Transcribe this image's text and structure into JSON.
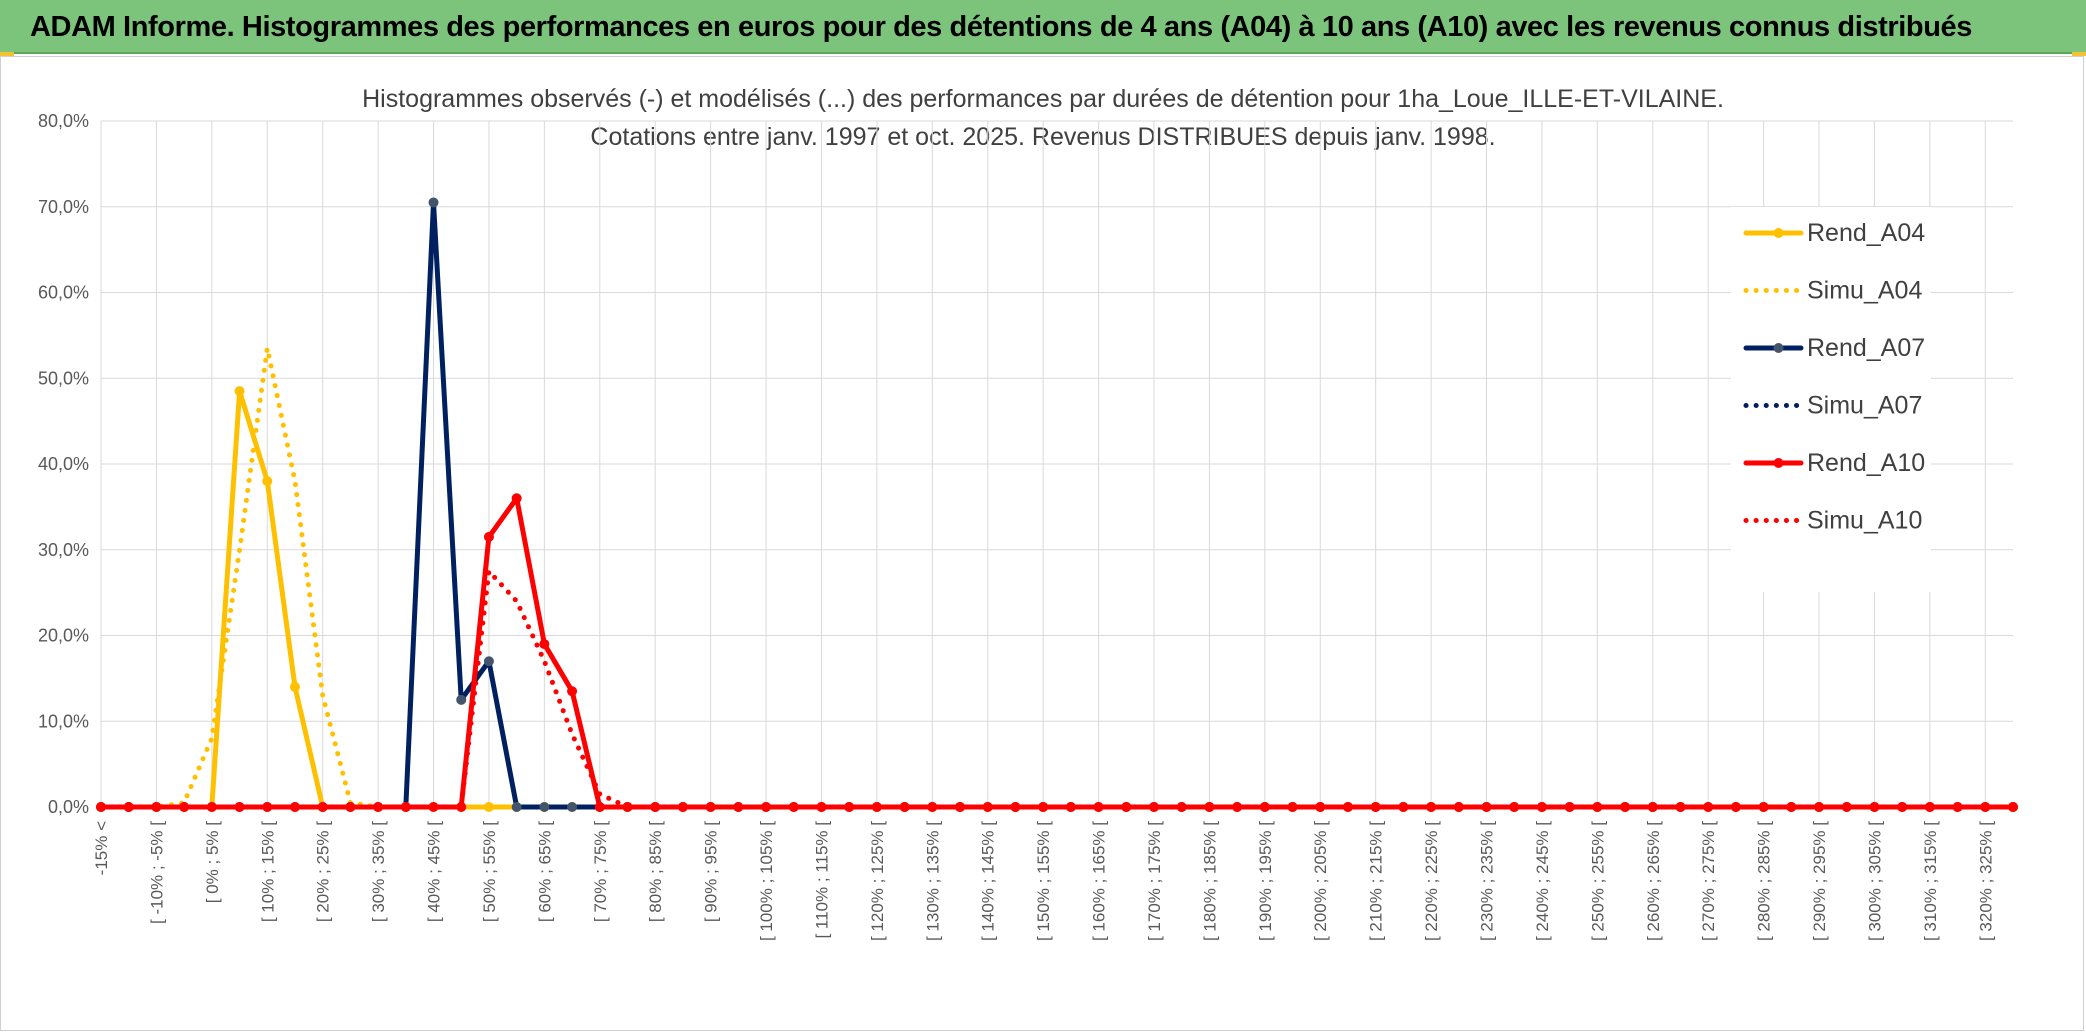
{
  "banner": {
    "title": "ADAM Informe. Histogrammes des performances en euros pour des détentions de 4 ans (A04) à 10 ans (A10) avec les revenus connus distribués"
  },
  "colors": {
    "banner_bg": "#7cc47c",
    "A04": "#ffc000",
    "A07": "#002060",
    "A10": "#ff0000",
    "grid": "#d9d9d9"
  },
  "chart_data": {
    "type": "line",
    "title": [
      "Histogrammes observés (-) et modélisés (...) des performances par durées de détention pour 1ha_Loue_ILLE-ET-VILAINE.",
      "Cotations entre janv. 1997 et oct. 2025.  Revenus DISTRIBUES depuis janv. 1998."
    ],
    "xlabel": "",
    "ylabel": "",
    "ylim": [
      0,
      80
    ],
    "y_ticks": [
      "0,0%",
      "10,0%",
      "20,0%",
      "30,0%",
      "40,0%",
      "50,0%",
      "60,0%",
      "70,0%",
      "80,0%"
    ],
    "x_ticks": [
      "-15% <",
      "[ -10% ; -5% [",
      "[ 0% ; 5% [",
      "[ 10% ; 15% [",
      "[ 20% ; 25% [",
      "[ 30% ; 35% [",
      "[ 40% ; 45% [",
      "[ 50% ; 55% [",
      "[ 60% ; 65% [",
      "[ 70% ; 75% [",
      "[ 80% ; 85% [",
      "[ 90% ; 95% [",
      "[ 100% ; 105% [",
      "[ 110% ; 115% [",
      "[ 120% ; 125% [",
      "[ 130% ; 135% [",
      "[ 140% ; 145% [",
      "[ 150% ; 155% [",
      "[ 160% ; 165% [",
      "[ 170% ; 175% [",
      "[ 180% ; 185% [",
      "[ 190% ; 195% [",
      "[ 200% ; 205% [",
      "[ 210% ; 215% [",
      "[ 220% ; 225% [",
      "[ 230% ; 235% [",
      "[ 240% ; 245% [",
      "[ 250% ; 255% [",
      "[ 260% ; 265% [",
      "[ 270% ; 275% [",
      "[ 280% ; 285% [",
      "[ 290% ; 295% [",
      "[ 300% ; 305% [",
      "[ 310% ; 315% [",
      "[ 320% ; 325% ["
    ],
    "categories_count": 70,
    "grid": true,
    "legend_position": "right",
    "series": [
      {
        "name": "Rend_A04",
        "style": "solid",
        "color": "#ffc000",
        "values": [
          0,
          0,
          0,
          0,
          0,
          48.5,
          38,
          14,
          0,
          0,
          0,
          0,
          0,
          0,
          0,
          0,
          0,
          0,
          0,
          0,
          0,
          0,
          0,
          0,
          0,
          0,
          0,
          0,
          0,
          0,
          0,
          0,
          0,
          0,
          0,
          0,
          0,
          0,
          0,
          0,
          0,
          0,
          0,
          0,
          0,
          0,
          0,
          0,
          0,
          0,
          0,
          0,
          0,
          0,
          0,
          0,
          0,
          0,
          0,
          0,
          0,
          0,
          0,
          0,
          0,
          0,
          0,
          0,
          0,
          0
        ]
      },
      {
        "name": "Simu_A04",
        "style": "dotted",
        "color": "#ffc000",
        "values": [
          0,
          0,
          0,
          0.5,
          8,
          30,
          53.5,
          38,
          13,
          0.5,
          0,
          0,
          0,
          0,
          0,
          0,
          0,
          0,
          0,
          0,
          0,
          0,
          0,
          0,
          0,
          0,
          0,
          0,
          0,
          0,
          0,
          0,
          0,
          0,
          0,
          0,
          0,
          0,
          0,
          0,
          0,
          0,
          0,
          0,
          0,
          0,
          0,
          0,
          0,
          0,
          0,
          0,
          0,
          0,
          0,
          0,
          0,
          0,
          0,
          0,
          0,
          0,
          0,
          0,
          0,
          0,
          0,
          0,
          0,
          0
        ]
      },
      {
        "name": "Rend_A07",
        "style": "solid",
        "color": "#002060",
        "values": [
          0,
          0,
          0,
          0,
          0,
          0,
          0,
          0,
          0,
          0,
          0,
          0,
          70.5,
          12.5,
          17,
          0,
          0,
          0,
          0,
          0,
          0,
          0,
          0,
          0,
          0,
          0,
          0,
          0,
          0,
          0,
          0,
          0,
          0,
          0,
          0,
          0,
          0,
          0,
          0,
          0,
          0,
          0,
          0,
          0,
          0,
          0,
          0,
          0,
          0,
          0,
          0,
          0,
          0,
          0,
          0,
          0,
          0,
          0,
          0,
          0,
          0,
          0,
          0,
          0,
          0,
          0,
          0,
          0,
          0,
          0
        ]
      },
      {
        "name": "Simu_A07",
        "style": "dotted",
        "color": "#002060",
        "values": [
          0,
          0,
          0,
          0,
          0,
          0,
          0,
          0,
          0,
          0,
          0,
          0,
          0,
          0,
          0,
          0,
          0,
          0,
          0,
          0,
          0,
          0,
          0,
          0,
          0,
          0,
          0,
          0,
          0,
          0,
          0,
          0,
          0,
          0,
          0,
          0,
          0,
          0,
          0,
          0,
          0,
          0,
          0,
          0,
          0,
          0,
          0,
          0,
          0,
          0,
          0,
          0,
          0,
          0,
          0,
          0,
          0,
          0,
          0,
          0,
          0,
          0,
          0,
          0,
          0,
          0,
          0,
          0,
          0,
          0
        ]
      },
      {
        "name": "Rend_A10",
        "style": "solid",
        "color": "#ff0000",
        "values": [
          0,
          0,
          0,
          0,
          0,
          0,
          0,
          0,
          0,
          0,
          0,
          0,
          0,
          0,
          31.5,
          36,
          19,
          13.5,
          0,
          0,
          0,
          0,
          0,
          0,
          0,
          0,
          0,
          0,
          0,
          0,
          0,
          0,
          0,
          0,
          0,
          0,
          0,
          0,
          0,
          0,
          0,
          0,
          0,
          0,
          0,
          0,
          0,
          0,
          0,
          0,
          0,
          0,
          0,
          0,
          0,
          0,
          0,
          0,
          0,
          0,
          0,
          0,
          0,
          0,
          0,
          0,
          0,
          0,
          0,
          0
        ]
      },
      {
        "name": "Simu_A10",
        "style": "dotted",
        "color": "#ff0000",
        "values": [
          0,
          0,
          0,
          0,
          0,
          0,
          0,
          0,
          0,
          0,
          0,
          0,
          0,
          0,
          27.5,
          24,
          17,
          8.5,
          1.5,
          0,
          0,
          0,
          0,
          0,
          0,
          0,
          0,
          0,
          0,
          0,
          0,
          0,
          0,
          0,
          0,
          0,
          0,
          0,
          0,
          0,
          0,
          0,
          0,
          0,
          0,
          0,
          0,
          0,
          0,
          0,
          0,
          0,
          0,
          0,
          0,
          0,
          0,
          0,
          0,
          0,
          0,
          0,
          0,
          0,
          0,
          0,
          0,
          0,
          0,
          0
        ]
      }
    ]
  }
}
